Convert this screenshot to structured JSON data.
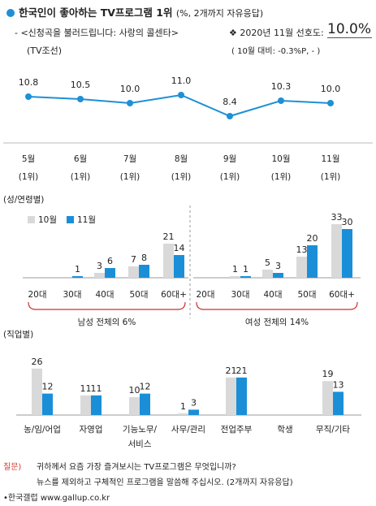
{
  "header": {
    "title": "한국인이 좋아하는 TV프로그램 1위",
    "unit_note": "(%, 2개까지 자유응답)",
    "program_line": "- <신청곡을 불러드립니다: 사랑의 콜센타>",
    "channel": "(TV조선)",
    "pref_label": "❖ 2020년 11월 선호도:",
    "pref_value": "10.0%",
    "delta": "( 10월 대비: -0.3%P,  -  )"
  },
  "colors": {
    "line": "#1e90d6",
    "gray": "#d9d9d9",
    "blue": "#1a8fd8",
    "red": "#d23a2d"
  },
  "chart_data": [
    {
      "type": "line",
      "categories": [
        "5월",
        "6월",
        "7월",
        "8월",
        "9월",
        "10월",
        "11월"
      ],
      "rank_labels": [
        "(1위)",
        "(1위)",
        "(1위)",
        "(1위)",
        "(1위)",
        "(1위)",
        "(1위)"
      ],
      "values": [
        10.8,
        10.5,
        10.0,
        11.0,
        8.4,
        10.3,
        10.0
      ],
      "value_labels": [
        "10.8",
        "10.5",
        "10.0",
        "11.0",
        "8.4",
        "10.3",
        "10.0"
      ]
    },
    {
      "type": "bar",
      "section_label": "(성/연령별)",
      "series": [
        {
          "name": "10월",
          "values": [
            0,
            3,
            7,
            21,
            0,
            1,
            5,
            13,
            33
          ]
        },
        {
          "name": "11월",
          "values": [
            1,
            6,
            8,
            14,
            1,
            3,
            20,
            30,
            null
          ]
        }
      ],
      "groups": [
        {
          "label": "남성 전체의 6%",
          "categories": [
            "20대",
            "30대",
            "40대",
            "50대",
            "60대+"
          ],
          "oct": [
            null,
            0,
            3,
            7,
            21
          ],
          "nov": [
            null,
            1,
            6,
            8,
            14
          ]
        },
        {
          "label": "여성 전체의 14%",
          "categories": [
            "20대",
            "30대",
            "40대",
            "50대",
            "60대+"
          ],
          "oct": [
            null,
            1,
            5,
            13,
            33
          ],
          "nov": [
            null,
            1,
            3,
            20,
            30
          ]
        }
      ]
    },
    {
      "type": "bar",
      "section_label": "(직업별)",
      "categories": [
        "농/임/어업",
        "자영업",
        "기능노무/서비스",
        "사무/관리",
        "전업주부",
        "학생",
        "무직/기타"
      ],
      "category_lines": [
        [
          "농/임/어업"
        ],
        [
          "자영업"
        ],
        [
          "기능노무/",
          "서비스"
        ],
        [
          "사무/관리"
        ],
        [
          "전업주부"
        ],
        [
          "학생"
        ],
        [
          "무직/기타"
        ]
      ],
      "series": [
        {
          "name": "10월",
          "values": [
            26,
            11,
            10,
            1,
            21,
            null,
            19
          ]
        },
        {
          "name": "11월",
          "values": [
            12,
            11,
            12,
            3,
            21,
            null,
            13
          ]
        }
      ]
    }
  ],
  "footer": {
    "q_label": "질문)",
    "q_line1": "귀하께서 요즘 가장 즐겨보시는 TV프로그램은 무엇입니까?",
    "q_line2": "뉴스를 제외하고 구체적인 프로그램을 말씀해 주십시오. (2개까지 자유응답)",
    "source": "•한국갤럽 www.gallup.co.kr"
  }
}
